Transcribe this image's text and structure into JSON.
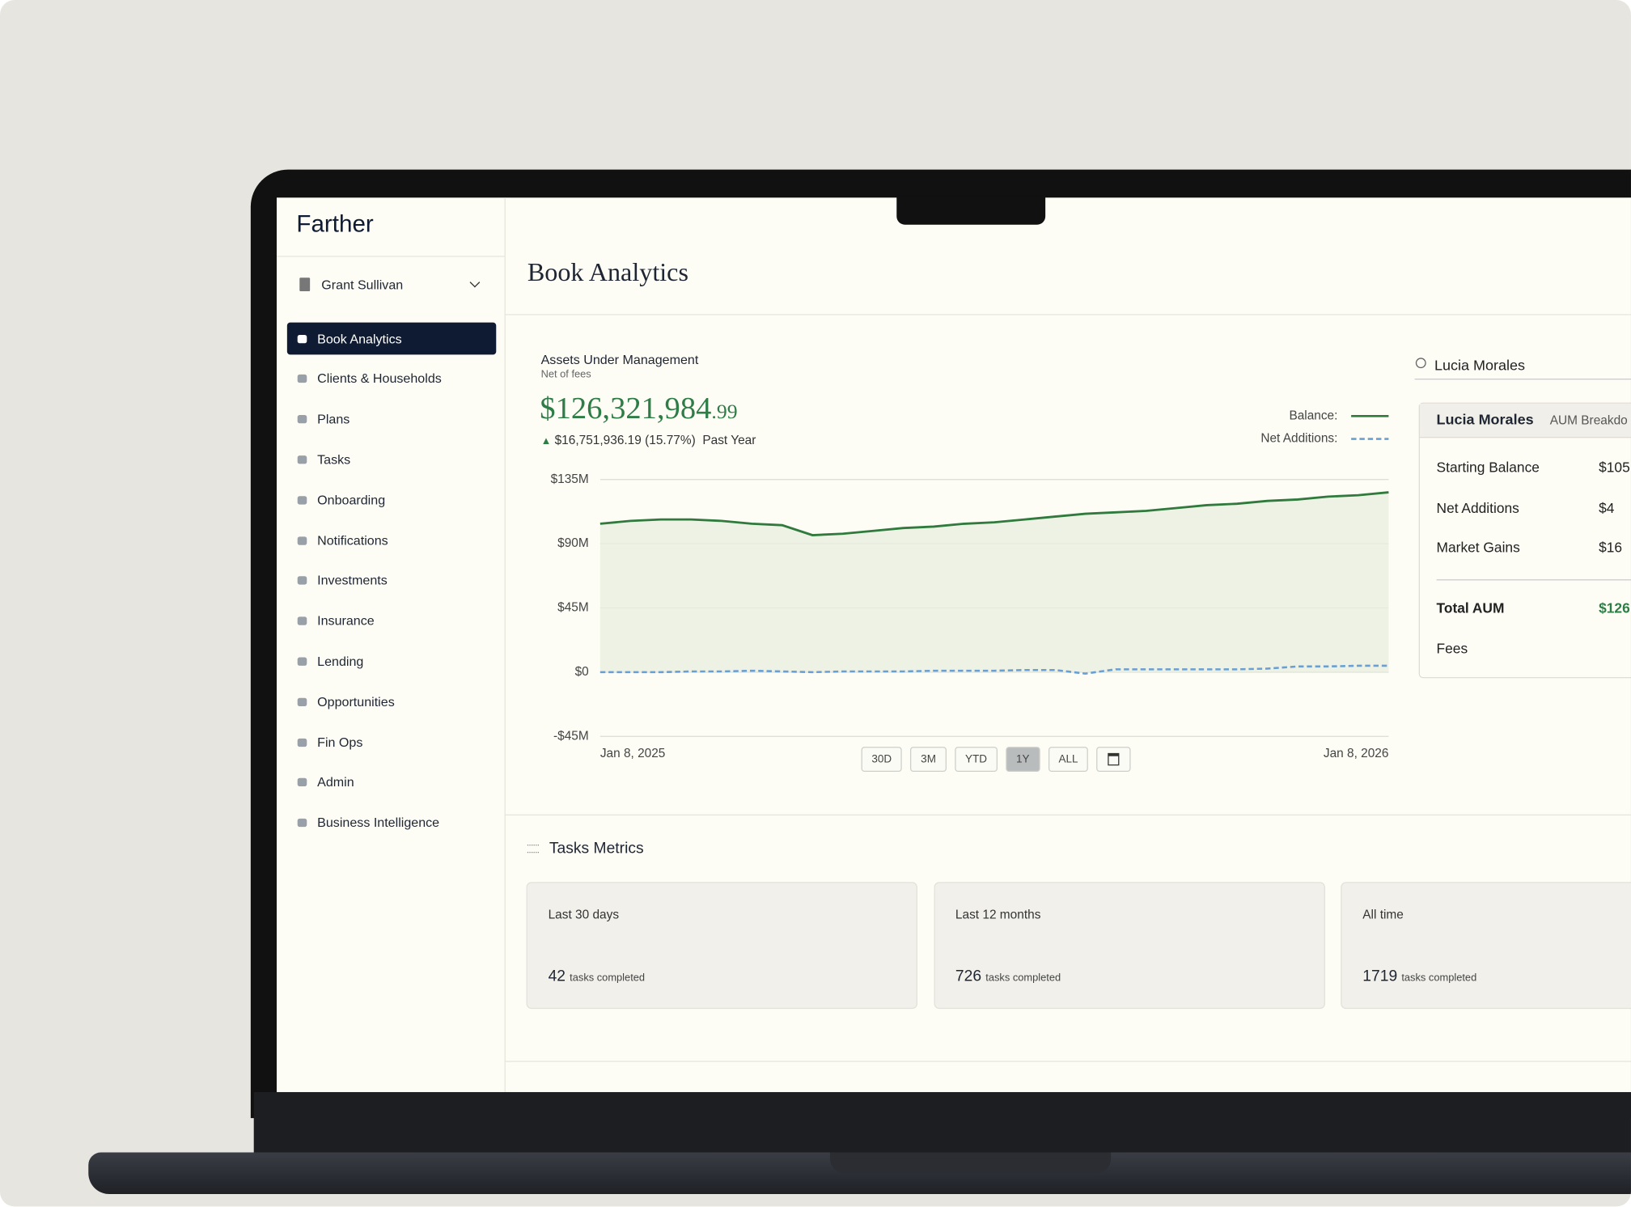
{
  "app": {
    "brand": "Farther",
    "user": "Grant Sullivan",
    "nav": [
      "Book Analytics",
      "Clients & Households",
      "Plans",
      "Tasks",
      "Onboarding",
      "Notifications",
      "Investments",
      "Insurance",
      "Lending",
      "Opportunities",
      "Fin Ops",
      "Admin",
      "Business Intelligence"
    ]
  },
  "page_title": "Book Analytics",
  "aum": {
    "title": "Assets Under Management",
    "subtitle": "Net of fees",
    "value": "$126,321,984",
    "cents": ".99",
    "change": "$16,751,936.19 (15.77%)",
    "period": "Past Year",
    "ranges": [
      "30D",
      "3M",
      "YTD",
      "1Y",
      "ALL"
    ]
  },
  "breakdown": {
    "search": "Lucia Morales",
    "name": "Lucia Morales",
    "tab": "AUM Breakdo",
    "rows": [
      [
        "Starting Balance",
        "$105"
      ],
      [
        "Net Additions",
        "$4"
      ],
      [
        "Market Gains",
        "$16"
      ]
    ],
    "total": [
      "Total AUM",
      "$126"
    ],
    "fees": "Fees"
  },
  "tasks": {
    "title": "Tasks Metrics",
    "cards": [
      {
        "period": "Last 30 days",
        "count": 42,
        "unit": "tasks completed"
      },
      {
        "period": "Last 12 months",
        "count": 726,
        "unit": "tasks completed"
      },
      {
        "period": "All time",
        "count": 1719,
        "unit": "tasks completed"
      }
    ]
  },
  "chart_data": {
    "type": "line",
    "categories": [
      "Jan 8, 2025",
      null,
      null,
      null,
      null,
      null,
      null,
      null,
      null,
      null,
      null,
      null,
      null,
      null,
      null,
      null,
      null,
      null,
      null,
      null,
      null,
      null,
      null,
      null,
      null,
      null,
      "Jan 8, 2026"
    ],
    "series": [
      {
        "name": "Balance:",
        "color": "#2f7a3c",
        "values": [
          104,
          106,
          107,
          107,
          106,
          104,
          103,
          96,
          97,
          99,
          101,
          102,
          104,
          105,
          107,
          109,
          111,
          112,
          113,
          115,
          117,
          118,
          120,
          121,
          123,
          124,
          126
        ]
      },
      {
        "name": "Net Additions:",
        "color": "#6a9fd4",
        "values": [
          0,
          0,
          0,
          0.5,
          0.5,
          1,
          0.5,
          0,
          0.5,
          0.5,
          0.5,
          1,
          1,
          1,
          1.5,
          1.5,
          -1,
          2,
          2,
          2,
          2,
          2,
          2.5,
          4,
          4,
          4.5,
          4.5
        ]
      }
    ],
    "ylim": [
      -45,
      135
    ],
    "yticks": [
      {
        "value": -45,
        "label": "-$45M"
      },
      {
        "value": 0,
        "label": "$0"
      },
      {
        "value": 45,
        "label": "$45M"
      },
      {
        "value": 90,
        "label": "$90M"
      },
      {
        "value": 135,
        "label": "$135M"
      }
    ],
    "grid": true
  }
}
